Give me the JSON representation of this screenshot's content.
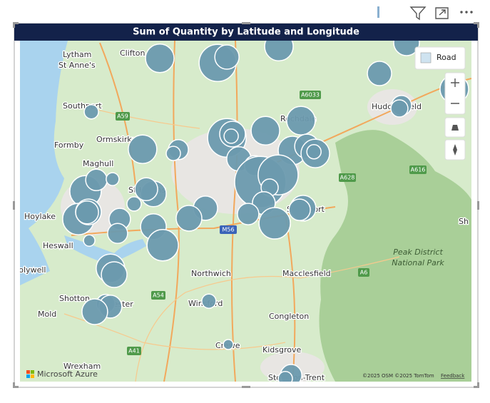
{
  "chart_data": {
    "type": "bubble-map",
    "title": "Sum of Quantity by Latitude and Longitude",
    "points": [
      {
        "lat": 53.748,
        "lon": -2.723,
        "size": 400
      },
      {
        "lat": 53.737,
        "lon": -2.505,
        "size": 676
      },
      {
        "lat": 53.751,
        "lon": -2.47,
        "size": 289
      },
      {
        "lat": 53.776,
        "lon": -2.274,
        "size": 400
      },
      {
        "lat": 53.785,
        "lon": -1.793,
        "size": 324
      },
      {
        "lat": 53.712,
        "lon": -1.895,
        "size": 289
      },
      {
        "lat": 53.675,
        "lon": -1.613,
        "size": 400
      },
      {
        "lat": 53.621,
        "lon": -2.981,
        "size": 100
      },
      {
        "lat": 53.636,
        "lon": -1.812,
        "size": 196
      },
      {
        "lat": 53.629,
        "lon": -1.82,
        "size": 144
      },
      {
        "lat": 53.6,
        "lon": -2.191,
        "size": 400
      },
      {
        "lat": 53.576,
        "lon": -2.325,
        "size": 400
      },
      {
        "lat": 53.559,
        "lon": -2.47,
        "size": 729
      },
      {
        "lat": 53.568,
        "lon": -2.449,
        "size": 324
      },
      {
        "lat": 53.563,
        "lon": -2.454,
        "size": 100
      },
      {
        "lat": 53.532,
        "lon": -2.788,
        "size": 400
      },
      {
        "lat": 53.531,
        "lon": -2.653,
        "size": 196
      },
      {
        "lat": 53.522,
        "lon": -2.672,
        "size": 100
      },
      {
        "lat": 53.529,
        "lon": -2.223,
        "size": 400
      },
      {
        "lat": 53.539,
        "lon": -2.169,
        "size": 289
      },
      {
        "lat": 53.522,
        "lon": -2.137,
        "size": 400
      },
      {
        "lat": 53.526,
        "lon": -2.142,
        "size": 100
      },
      {
        "lat": 53.509,
        "lon": -2.425,
        "size": 289
      },
      {
        "lat": 53.493,
        "lon": -2.366,
        "size": 196
      },
      {
        "lat": 53.432,
        "lon": -3.003,
        "size": 484
      },
      {
        "lat": 53.459,
        "lon": -2.962,
        "size": 225
      },
      {
        "lat": 53.461,
        "lon": -2.901,
        "size": 81
      },
      {
        "lat": 53.426,
        "lon": -2.747,
        "size": 324
      },
      {
        "lat": 53.437,
        "lon": -2.774,
        "size": 256
      },
      {
        "lat": 53.402,
        "lon": -2.82,
        "size": 100
      },
      {
        "lat": 53.454,
        "lon": -2.344,
        "size": 1296
      },
      {
        "lat": 53.471,
        "lon": -2.277,
        "size": 784
      },
      {
        "lat": 53.441,
        "lon": -2.309,
        "size": 144
      },
      {
        "lat": 53.404,
        "lon": -2.331,
        "size": 256
      },
      {
        "lat": 53.378,
        "lon": -2.39,
        "size": 225
      },
      {
        "lat": 53.356,
        "lon": -2.29,
        "size": 484
      },
      {
        "lat": 53.392,
        "lon": -2.183,
        "size": 324
      },
      {
        "lat": 53.388,
        "lon": -2.196,
        "size": 225
      },
      {
        "lat": 53.392,
        "lon": -2.551,
        "size": 289
      },
      {
        "lat": 53.368,
        "lon": -2.613,
        "size": 324
      },
      {
        "lat": 53.366,
        "lon": -2.874,
        "size": 225
      },
      {
        "lat": 53.332,
        "lon": -2.882,
        "size": 196
      },
      {
        "lat": 53.366,
        "lon": -3.03,
        "size": 484
      },
      {
        "lat": 53.383,
        "lon": -2.992,
        "size": 324
      },
      {
        "lat": 53.382,
        "lon": -2.997,
        "size": 256
      },
      {
        "lat": 53.348,
        "lon": -2.747,
        "size": 324
      },
      {
        "lat": 53.304,
        "lon": -2.712,
        "size": 484
      },
      {
        "lat": 53.315,
        "lon": -2.989,
        "size": 64
      },
      {
        "lat": 53.249,
        "lon": -2.909,
        "size": 400
      },
      {
        "lat": 53.234,
        "lon": -2.895,
        "size": 324
      },
      {
        "lat": 53.165,
        "lon": -2.927,
        "size": 169
      },
      {
        "lat": 53.158,
        "lon": -2.909,
        "size": 256
      },
      {
        "lat": 53.146,
        "lon": -2.968,
        "size": 324
      },
      {
        "lat": 53.171,
        "lon": -2.538,
        "size": 100
      },
      {
        "lat": 53.068,
        "lon": -2.465,
        "size": 49
      },
      {
        "lat": 52.995,
        "lon": -2.228,
        "size": 225
      },
      {
        "lat": 52.987,
        "lon": -2.25,
        "size": 100
      }
    ]
  },
  "map": {
    "style": "Road",
    "brand": "Microsoft Azure",
    "attribution": "©2025 OSM  ©2025 TomTom",
    "feedback": "Feedback",
    "places": [
      "Lytham",
      "St Anne's",
      "Clifton",
      "Southport",
      "Formby",
      "Ormskirk",
      "Maghull",
      "St Helens",
      "Hoylake",
      "Heswall",
      "Holywell",
      "Northwich",
      "Macclesfield",
      "Winsford",
      "Congleton",
      "Shotton",
      "Mold",
      "Wrexham",
      "Kidsgrove",
      "Crewe",
      "Stoke-on-Trent",
      "Huddersfield",
      "Rochdale",
      "Stockport",
      "Chester",
      "Sh",
      "Peak District",
      "National Park"
    ],
    "roads": [
      "A6033",
      "A59",
      "A628",
      "A616",
      "M56",
      "A54",
      "A41",
      "A6"
    ]
  }
}
